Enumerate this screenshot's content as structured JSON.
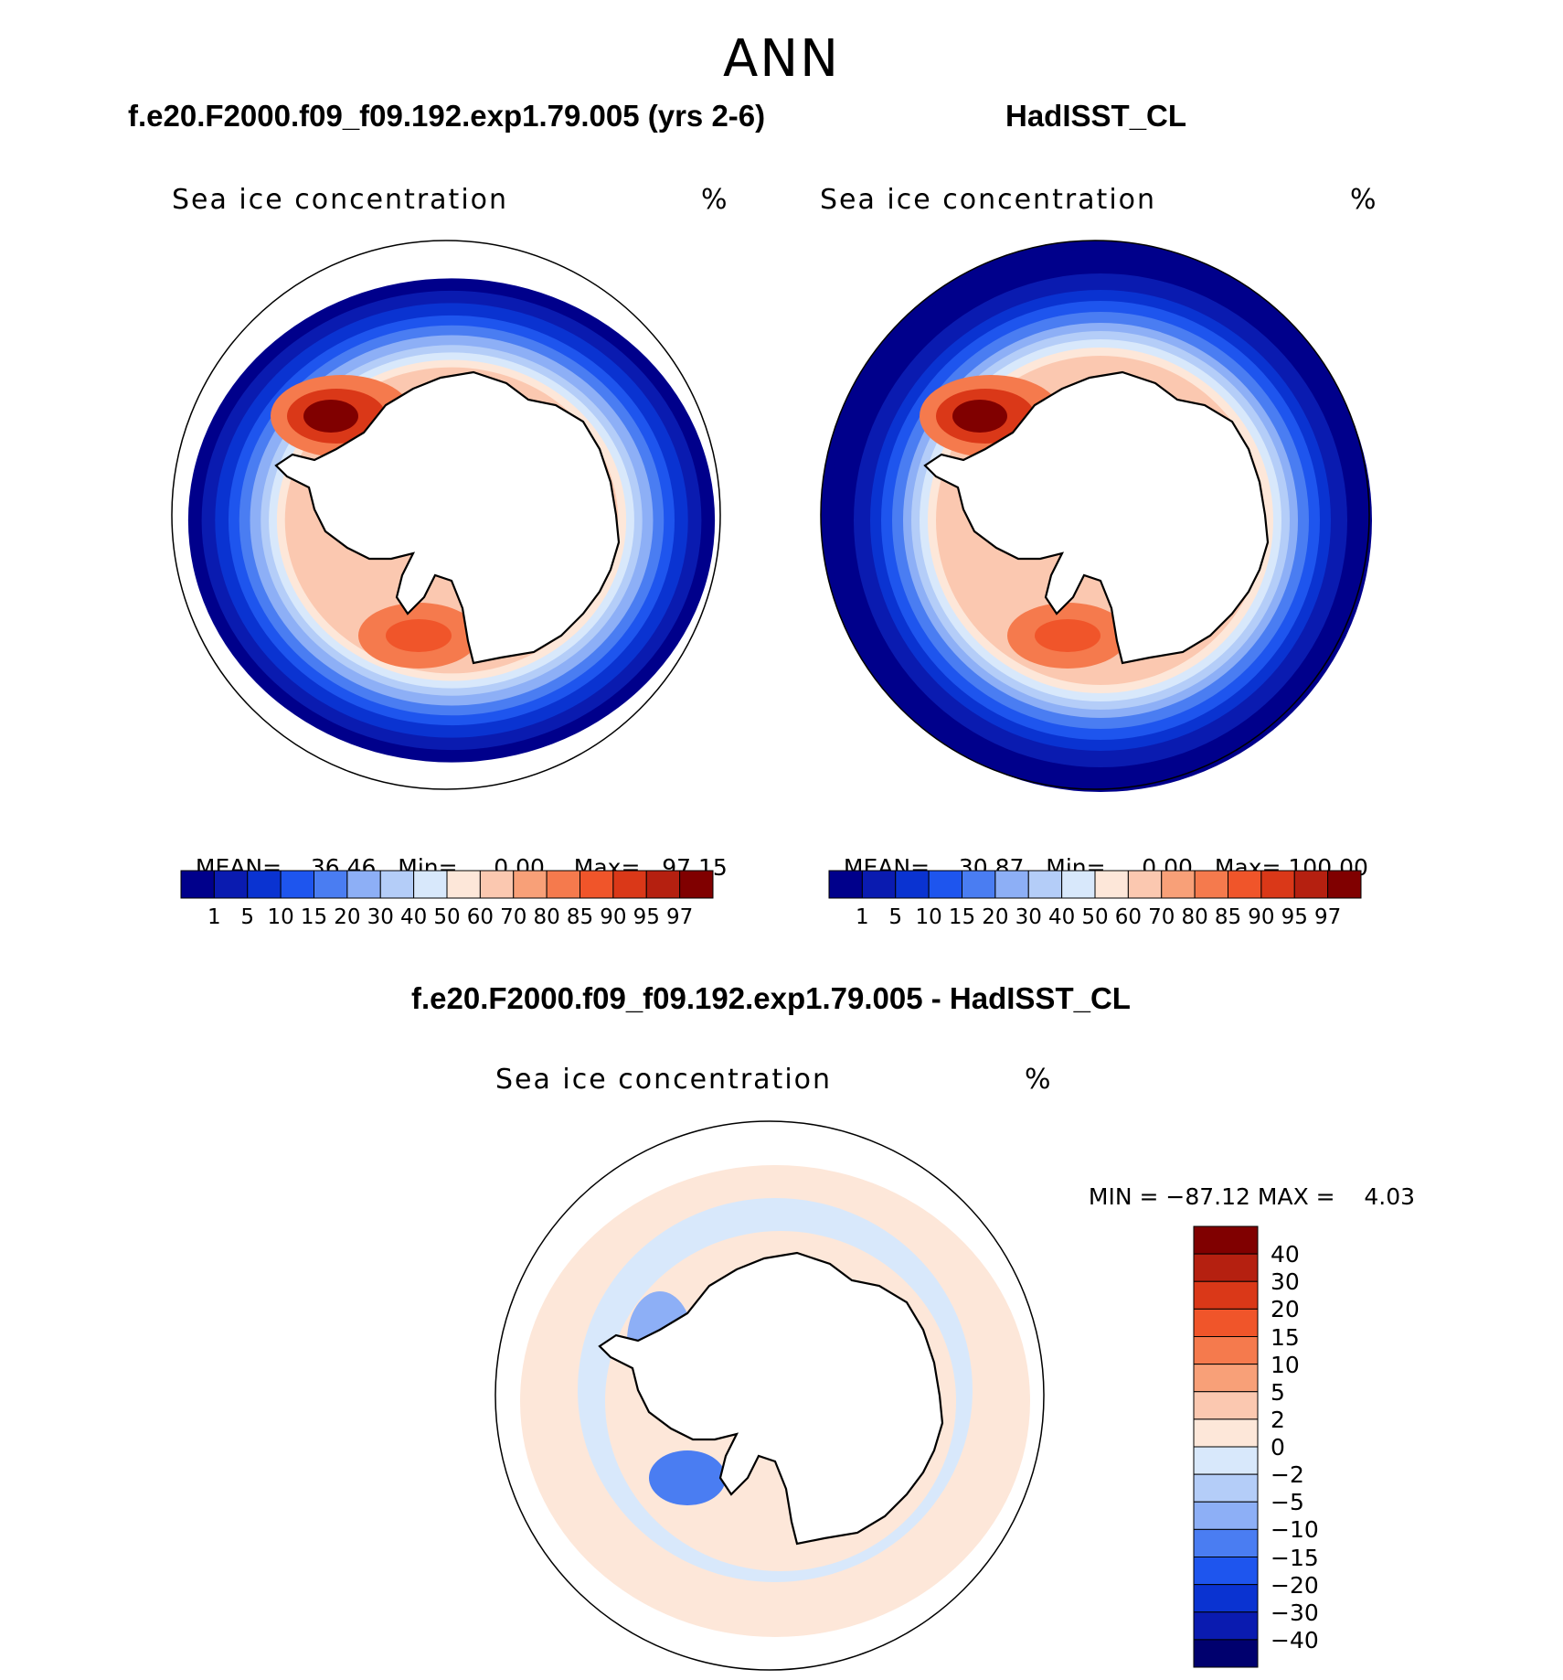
{
  "figure": {
    "title": "ANN",
    "unit_symbol": "%"
  },
  "colors": {
    "ocean_dark": "#00008b",
    "land": "#ffffff",
    "coast": "#000000",
    "scale": [
      "#00008b",
      "#0a1bb0",
      "#0a33d1",
      "#1e55ee",
      "#4a7df2",
      "#8daff6",
      "#b4cdf8",
      "#d8e8fb",
      "#fde7d9",
      "#fbc8b0",
      "#f8a078",
      "#f57a4d",
      "#f0552a",
      "#da3818",
      "#b52010",
      "#800000"
    ],
    "diff_scale": [
      "#00006e",
      "#0a1bb0",
      "#0a33d1",
      "#1e55ee",
      "#4a7df2",
      "#8daff6",
      "#b4cdf8",
      "#d8e8fb",
      "#fde7d9",
      "#fbc8b0",
      "#f8a078",
      "#f57a4d",
      "#f0552a",
      "#da3818",
      "#b52010",
      "#800000"
    ]
  },
  "chart_data": [
    {
      "type": "heatmap",
      "panel": "left",
      "title": "f.e20.F2000.f09_f09.192.exp1.79.005 (yrs 2-6)",
      "variable": "Sea ice concentration",
      "units": "%",
      "stats": {
        "mean_label": "MEAN=",
        "mean": "36.46",
        "min_label": "Min=",
        "min": "0.00",
        "max_label": "Max=",
        "max": "97.15"
      },
      "levels": [
        "1",
        "5",
        "10",
        "15",
        "20",
        "30",
        "40",
        "50",
        "60",
        "70",
        "80",
        "85",
        "90",
        "95",
        "97"
      ]
    },
    {
      "type": "heatmap",
      "panel": "right",
      "title": "HadISST_CL",
      "variable": "Sea ice concentration",
      "units": "%",
      "stats": {
        "mean_label": "MEAN=",
        "mean": "30.87",
        "min_label": "Min=",
        "min": "0.00",
        "max_label": "Max=",
        "max": "100.00"
      },
      "levels": [
        "1",
        "5",
        "10",
        "15",
        "20",
        "30",
        "40",
        "50",
        "60",
        "70",
        "80",
        "85",
        "90",
        "95",
        "97"
      ]
    },
    {
      "type": "heatmap",
      "panel": "difference",
      "title": "f.e20.F2000.f09_f09.192.exp1.79.005 - HadISST_CL",
      "variable": "Sea ice concentration",
      "units": "%",
      "stats": {
        "min_label": "MIN =",
        "min": "−87.12",
        "max_label": "MAX =",
        "max": "4.03"
      },
      "levels": [
        "40",
        "30",
        "20",
        "15",
        "10",
        "5",
        "2",
        "0",
        "−2",
        "−5",
        "−10",
        "−15",
        "−20",
        "−30",
        "−40"
      ]
    }
  ]
}
